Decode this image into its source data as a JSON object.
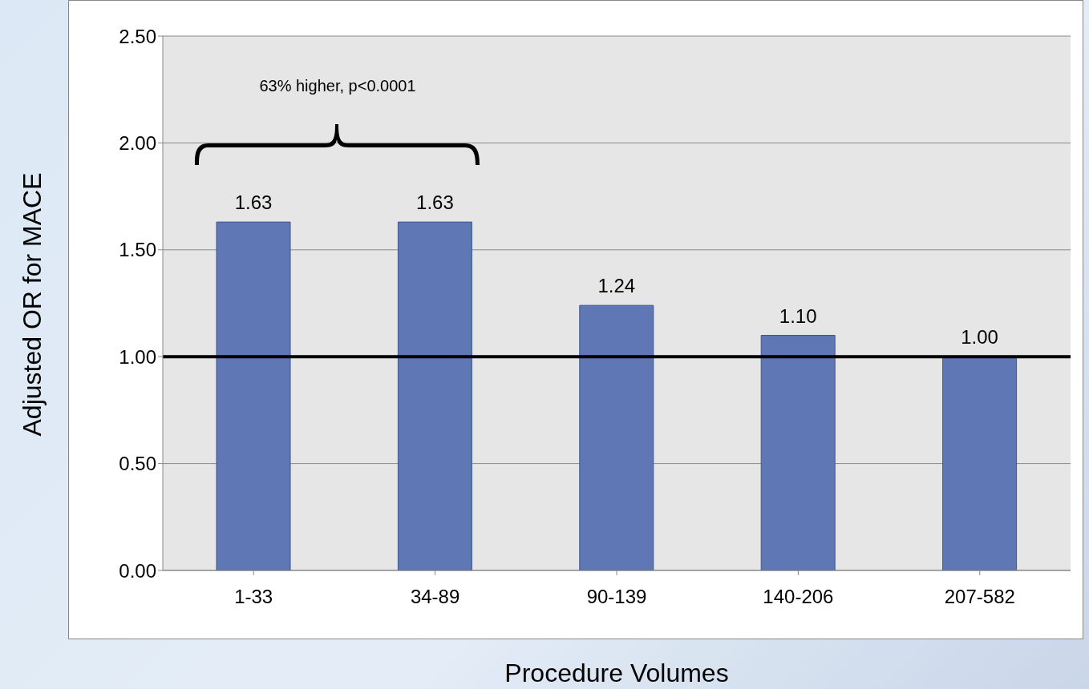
{
  "chart_data": {
    "type": "bar",
    "xlabel": "Procedure Volumes",
    "ylabel": "Adjusted OR for MACE",
    "categories": [
      "1-33",
      "34-89",
      "90-139",
      "140-206",
      "207-582"
    ],
    "values": [
      1.63,
      1.63,
      1.24,
      1.1,
      1.0
    ],
    "value_labels": [
      "1.63",
      "1.63",
      "1.24",
      "1.10",
      "1.00"
    ],
    "color": "#5f77b5",
    "ylim": [
      0,
      2.5
    ],
    "yticks": [
      {
        "value": 0,
        "label": "0.00"
      },
      {
        "value": 0.5,
        "label": "0.50"
      },
      {
        "value": 1,
        "label": "1.00"
      },
      {
        "value": 1.5,
        "label": "1.50"
      },
      {
        "value": 2,
        "label": "2.00"
      },
      {
        "value": 2.5,
        "label": "2.50"
      }
    ],
    "grid": "y",
    "ref_lines": [
      {
        "axis": "y",
        "value": 1,
        "color": "#000000"
      }
    ],
    "annotations": [
      "63% higher, p<0.0001"
    ]
  }
}
